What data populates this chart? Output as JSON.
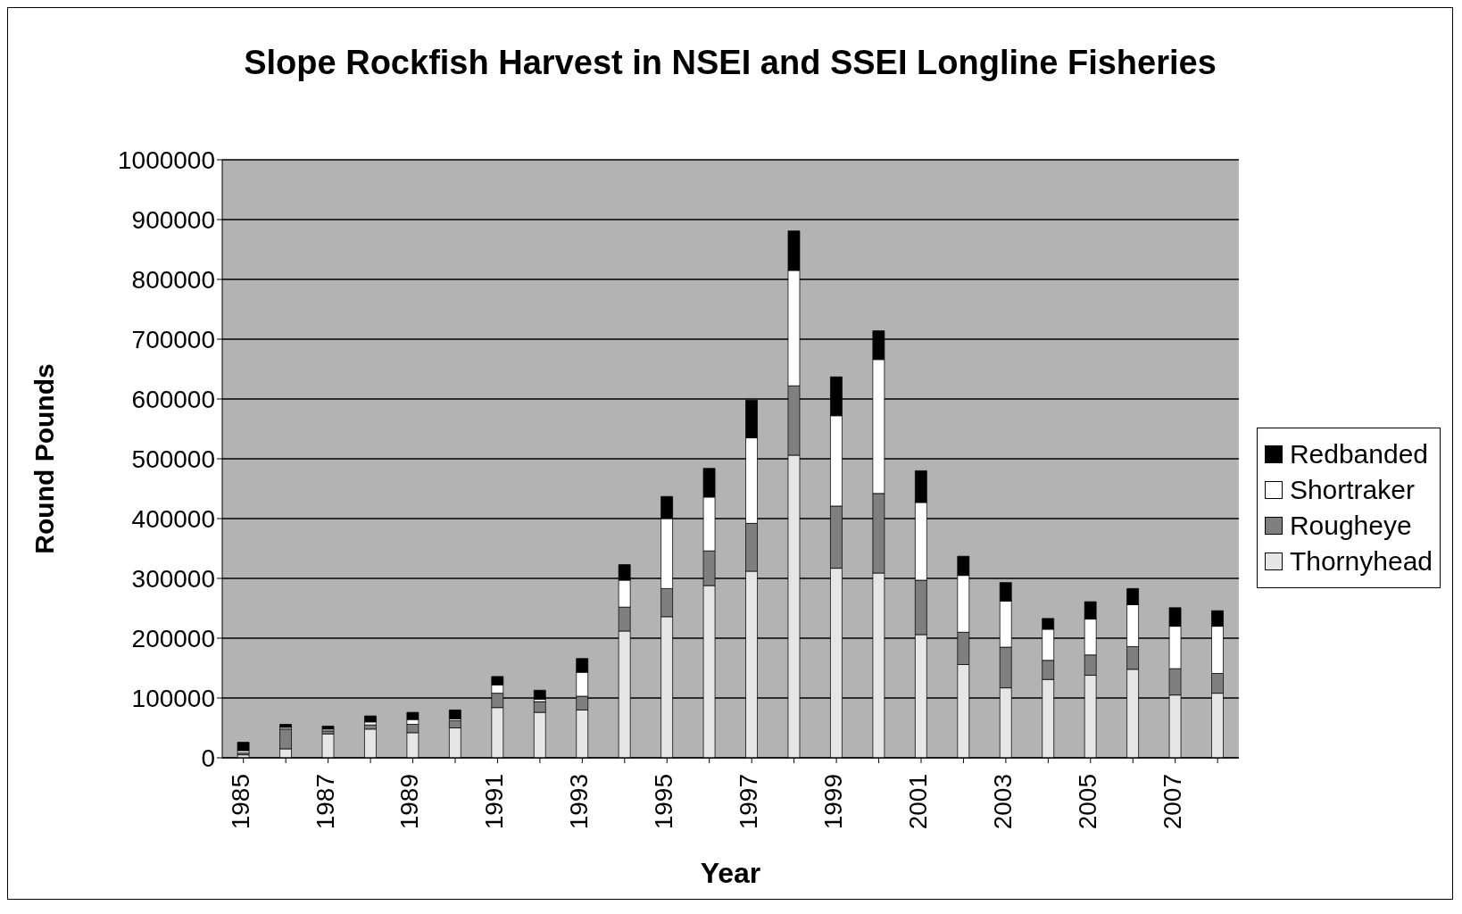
{
  "chart_data": {
    "type": "bar",
    "title": "Slope Rockfish Harvest in NSEI and SSEI Longline Fisheries",
    "xlabel": "Year",
    "ylabel": "Round Pounds",
    "categories": [
      "1985",
      null,
      "1987",
      null,
      "1989",
      null,
      "1991",
      null,
      "1993",
      null,
      "1995",
      null,
      "1997",
      null,
      "1999",
      null,
      "2001",
      null,
      "2003",
      null,
      "2005",
      null,
      "2007",
      null
    ],
    "series": [
      {
        "name": "Thornyhead",
        "color": "#e6e6e6",
        "values": [
          5000,
          15000,
          40000,
          48000,
          42000,
          50000,
          84000,
          76000,
          80000,
          212000,
          236000,
          288000,
          312000,
          506000,
          317000,
          309000,
          206000,
          156000,
          117000,
          131000,
          138000,
          148000,
          105000,
          108000
        ]
      },
      {
        "name": "Rougheye",
        "color": "#7f7f7f",
        "values": [
          3000,
          33000,
          5000,
          7000,
          14000,
          12000,
          24000,
          18000,
          23000,
          40000,
          47000,
          58000,
          80000,
          116000,
          104000,
          133000,
          91000,
          54000,
          68000,
          32000,
          34000,
          38000,
          44000,
          33000
        ]
      },
      {
        "name": "Shortraker",
        "color": "#ffffff",
        "values": [
          4000,
          3000,
          3000,
          5000,
          8000,
          3000,
          14000,
          4000,
          40000,
          45000,
          117000,
          90000,
          143000,
          193000,
          151000,
          224000,
          130000,
          95000,
          77000,
          52000,
          60000,
          70000,
          71000,
          79000
        ]
      },
      {
        "name": "Redbanded",
        "color": "#000000",
        "values": [
          14000,
          5000,
          5000,
          10000,
          12000,
          15000,
          14000,
          15000,
          23000,
          26000,
          37000,
          48000,
          63000,
          66000,
          65000,
          48000,
          53000,
          32000,
          31000,
          18000,
          29000,
          27000,
          31000,
          26000
        ]
      }
    ],
    "stacked": true,
    "ylim": [
      0,
      1000000
    ],
    "yticks": [
      0,
      100000,
      200000,
      300000,
      400000,
      500000,
      600000,
      700000,
      800000,
      900000,
      1000000
    ],
    "grid": "y",
    "legend": "right"
  }
}
